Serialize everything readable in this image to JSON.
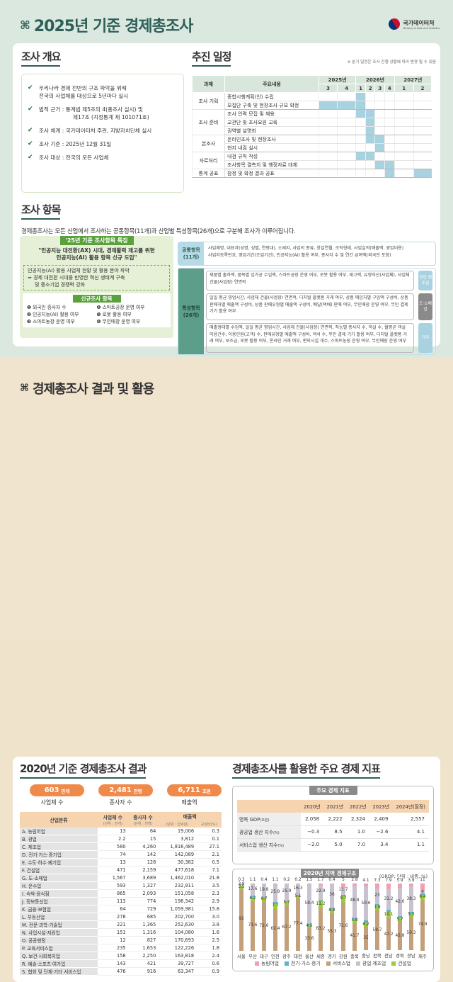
{
  "header": {
    "title_symbol": "⌘",
    "title": "2025년 기준 경제총조사",
    "logo_name": "국가데이터처",
    "logo_sub": "Ministry of Data and Statistics"
  },
  "overview": {
    "heading": "조사 개요",
    "items": [
      {
        "line1": "우리나라 경제 전반의 구조 파악을 위해",
        "line2": "전국의 사업체를 대상으로 5년마다 실시"
      },
      {
        "line1": "법적 근거 : 통계법 제5조의 4(총조사 실시) 및",
        "line2": "제17조 (지정통계 제 101071호)"
      },
      {
        "line1": "조사 체계 : 국가데이터처 주관, 지방자치단체 실시",
        "line2": ""
      },
      {
        "line1": "조사 기준 : 2025년 12월 31일",
        "line2": ""
      },
      {
        "line1": "조사 대상 : 전국의 모든 사업체",
        "line2": ""
      }
    ]
  },
  "schedule": {
    "heading": "추진 일정",
    "note": "※ 분기 일정은 조사 진행 상황에 따라 변경 될 수 있음",
    "col_task": "과제",
    "col_content": "주요내용",
    "years": [
      {
        "label": "2025년",
        "span": 2
      },
      {
        "label": "2026년",
        "span": 4
      },
      {
        "label": "2027년",
        "span": 2
      }
    ],
    "quarters": [
      "3",
      "4",
      "1",
      "2",
      "3",
      "4",
      "1",
      "2"
    ],
    "groups": [
      {
        "task": "조사 기획",
        "rows": [
          {
            "content": "종합시행계획(안) 수립",
            "bars": [
              0,
              0,
              1,
              0,
              0,
              0,
              0,
              0
            ]
          },
          {
            "content": "모집단 구축 및 현장조사 규모 확정",
            "bars": [
              1,
              1,
              1,
              0,
              0,
              0,
              0,
              0
            ]
          }
        ]
      },
      {
        "task": "조사 준비",
        "rows": [
          {
            "content": "조사 인력 모집 및 채용",
            "bars": [
              0,
              0,
              1,
              1,
              0,
              0,
              0,
              0
            ]
          },
          {
            "content": "교관단 및 조사요원 교육",
            "bars": [
              0,
              0,
              0,
              1,
              0,
              0,
              0,
              0
            ]
          },
          {
            "content": "권역별 설명회",
            "bars": [
              0,
              0,
              0,
              1,
              0,
              0,
              0,
              0
            ]
          }
        ]
      },
      {
        "task": "본조사",
        "rows": [
          {
            "content": "온라인조사 및 현장조사",
            "bars": [
              0,
              0,
              0,
              1,
              1,
              0,
              0,
              0
            ]
          },
          {
            "content": "현지 내검 실시",
            "bars": [
              0,
              0,
              0,
              0,
              1,
              0,
              0,
              0
            ]
          }
        ]
      },
      {
        "task": "자료처리",
        "rows": [
          {
            "content": "내검 규칙 작성",
            "bars": [
              0,
              0,
              1,
              1,
              0,
              0,
              0,
              0
            ]
          },
          {
            "content": "조사항목 결측치 및 행정자료 대체",
            "bars": [
              0,
              0,
              0,
              0,
              1,
              1,
              0,
              0
            ]
          }
        ]
      },
      {
        "task": "통계 공표",
        "rows": [
          {
            "content": "잠정 및 확정 결과 공표",
            "bars": [
              0,
              0,
              0,
              0,
              0,
              1,
              0,
              1
            ]
          }
        ]
      }
    ]
  },
  "items": {
    "heading": "조사 항목",
    "desc": "경제총조사는 모든 산업에서 조사하는 공통항목(11개)과 산업별 특성항목(26개)으로 구분해 조사가 이루어집니다.",
    "feature": {
      "tag": "'25년 기준 조사항목 특징",
      "quote1": "\"인공지능 대전환(AX) 시대, 경제활력 제고를 위한",
      "quote2": "인공지능(AI) 활용 항목 신규 도입\"",
      "dash1": "인공지능(AI) 활용 사업체 현황 및 활용 분야 파악",
      "dash_arrow": "➡",
      "dash2": "경제 대전환 시대를 반영한 혁신 생태계 구축",
      "dash3": "및 중소기업 경쟁력 강화",
      "new_tag": "신규조사 항목",
      "new_items": [
        "❶ 외국인 종사자 수",
        "❹ 스마트공장 운영 여부",
        "❷ 인공지능(AI) 활용 여부",
        "❺ 로봇 활용 여부",
        "❸ 스마트농장 운영 여부",
        "❻ 무인매장 운영 여부"
      ]
    },
    "common": {
      "label1": "공통항목",
      "label2": "(11개)",
      "line1": "사업체명, 대표자(성명, 성별, 연령대), 소재지, 사업의 종류, 창설연월, 조직형태, 사업실적(매출액, 영업비용)",
      "line2": "사업자등록번호, 영업기간(조업기간), 인공지능(AI) 활용 여부, 종사자 수 및 연간 급여액(외국인 포함)"
    },
    "special": {
      "label1": "특성항목",
      "label2": "(26개)",
      "rows": [
        {
          "text": "제품별 출하액, 품목별 임가공 수입액, 스마트공장 운영 여부, 로봇 활용 여부, 재고액, 유형자산(사업체), 사업체 건물(사업장) 연면적",
          "badge": "광업·제조업",
          "color": "#a8d2e0"
        },
        {
          "text": "일일 평균 영업시간, 사업체 건물(사업장) 연면적, 디지털 플랫폼 거래 여부, 상품 매입처별 구입액 구성비, 상품 판매처별 매출액 구성비, 상품 판매유형별 매출액 구성비, 배달(택배) 판매 여부, 무인매장 운영 여부, 무인 결제 기기 활용 여부",
          "badge": "도·소매업",
          "color": "#8a8a8a"
        },
        {
          "text": "매출형태별 수입액, 일일 평균 영업시간, 사업체 건물(사업장) 연면적, 직능별 종사자 수, 객실 수, 월평균 객실 이용건수, 이용인원(고객) 수, 판매유형별 매출액 구성비, 객석 수, 무인 결제 기기 활용 여부, 디지털 플랫폼 거래 여부, 보조금, 로봇 활용 여부, 온라인 거래 여부, 편의시설 개수, 스마트농장 운영 여부, 무인매장 운영 여부",
          "badge": "기타",
          "color": "#a8d2e0"
        }
      ]
    }
  },
  "section2": {
    "symbol": "⌘",
    "title": "경제총조사 결과 및 활용"
  },
  "results": {
    "heading": "2020년 기준 경제총조사 결과",
    "stats": [
      {
        "value": "603",
        "unit": "만개",
        "caption": "사업체 수"
      },
      {
        "value": "2,481",
        "unit": "만명",
        "caption": "종사자 수"
      },
      {
        "value": "6,711",
        "unit": "조원",
        "caption": "매출액"
      }
    ],
    "table": {
      "h_industry": "산업분류",
      "h_est": "사업체 수",
      "h_est_unit": "(단위 : 천개)",
      "h_emp": "종사자 수",
      "h_emp_unit": "(단위 : 천명)",
      "h_sales": "매출액",
      "h_sales_unit": "(단위 : 십억원)",
      "h_share": "구성비(%)",
      "rows": [
        [
          "A. 농림어업",
          "13",
          "64",
          "19,006",
          "0.3"
        ],
        [
          "B. 광업",
          "2.2",
          "15",
          "3,812",
          "0.1"
        ],
        [
          "C. 제조업",
          "580",
          "4,260",
          "1,816,489",
          "27.1"
        ],
        [
          "D. 전기·가스·증기업",
          "74",
          "142",
          "142,089",
          "2.1"
        ],
        [
          "E. 수도·하수·폐기업",
          "13",
          "128",
          "30,382",
          "0.5"
        ],
        [
          "F. 건설업",
          "471",
          "2,159",
          "477,618",
          "7.1"
        ],
        [
          "G. 도·소매업",
          "1,567",
          "3,689",
          "1,462,010",
          "21.8"
        ],
        [
          "H. 운수업",
          "593",
          "1,327",
          "232,911",
          "3.5"
        ],
        [
          "I. 숙박·음식점",
          "865",
          "2,093",
          "151,058",
          "2.3"
        ],
        [
          "J. 정보통신업",
          "113",
          "774",
          "196,342",
          "2.9"
        ],
        [
          "K. 금융·보험업",
          "64",
          "729",
          "1,059,981",
          "15.8"
        ],
        [
          "L. 부동산업",
          "278",
          "685",
          "202,700",
          "3.0"
        ],
        [
          "M. 전문·과학·기술업",
          "221",
          "1,365",
          "252,630",
          "3.8"
        ],
        [
          "N. 사업시설·지원업",
          "151",
          "1,316",
          "104,080",
          "1.6"
        ],
        [
          "O. 공공행정",
          "12",
          "827",
          "170,693",
          "2.5"
        ],
        [
          "P. 교육서비스업",
          "235",
          "1,653",
          "122,226",
          "1.8"
        ],
        [
          "Q. 보건·사회복지업",
          "158",
          "2,250",
          "163,818",
          "2.4"
        ],
        [
          "R. 예술·스포츠·여가업",
          "143",
          "421",
          "39,727",
          "0.6"
        ],
        [
          "S. 협회 및 단체·기타 서비스업",
          "476",
          "916",
          "63,347",
          "0.9"
        ]
      ]
    }
  },
  "indicators": {
    "heading": "경제총조사를 활용한 주요 경제 지표",
    "box_tag": "주요 경제 지표",
    "columns": [
      "",
      "2020년",
      "2021년",
      "2022년",
      "2023년",
      "2024년(잠정)"
    ],
    "rows": [
      {
        "label": "명목 GDP",
        "unit": "(조원)",
        "values": [
          "2,058",
          "2,222",
          "2,324",
          "2,409",
          "2,557"
        ]
      },
      {
        "label": "광공업 생산 지수",
        "unit": "(%)",
        "values": [
          "−0.3",
          "8.5",
          "1.0",
          "−2.6",
          "4.1"
        ]
      },
      {
        "label": "서비스업 생산 지수",
        "unit": "(%)",
        "values": [
          "−2.0",
          "5.0",
          "7.0",
          "3.4",
          "1.1"
        ]
      }
    ]
  },
  "chart_data": {
    "type": "bar",
    "stacked": true,
    "title": "2020년 지역 경제구조",
    "subtitle": "(GRDP, 단위 : 비중, %)",
    "categories": [
      "서울",
      "부산",
      "대구",
      "인천",
      "광주",
      "대전",
      "울산",
      "세종",
      "경기",
      "강원",
      "충북",
      "충남",
      "전북",
      "전남",
      "경북",
      "경남",
      "제주"
    ],
    "series": [
      {
        "name": "서비스업",
        "color": "#c4a07a",
        "values": [
          92.0,
          73.6,
          72.6,
          62.4,
          67.2,
          77.4,
          33.6,
          63.2,
          55.3,
          71.6,
          41.7,
          35.0,
          59.7,
          47.2,
          42.8,
          50.3,
          74.9
        ]
      },
      {
        "name": "건설업",
        "color": "#9ccc3c",
        "values": [
          3.5,
          6.2,
          6.7,
          7.7,
          5.7,
          5.1,
          4.5,
          11.2,
          6.8,
          9.7,
          5.8,
          6.2,
          7.9,
          10.1,
          5.7,
          5.3,
          8.4
        ]
      },
      {
        "name": "전기·가스·증기",
        "color": "#5ab4d0",
        "values": [
          0.3,
          1.5,
          0.5,
          3.0,
          1.0,
          1.0,
          2.0,
          1.0,
          1.5,
          2.0,
          1.5,
          3.0,
          1.5,
          2.5,
          2.0,
          1.5,
          1.5
        ]
      },
      {
        "name": "광업·제조업",
        "color": "#c8c2d0",
        "values": [
          3.9,
          17.6,
          19.8,
          25.8,
          25.9,
          16.3,
          58.4,
          22.9,
          36.0,
          11.7,
          48.8,
          50.6,
          23.0,
          31.2,
          42.6,
          38.3,
          4.0
        ]
      },
      {
        "name": "농림어업",
        "color": "#f0a0b0",
        "values": [
          0.3,
          1.1,
          0.4,
          1.1,
          0.2,
          0.2,
          1.5,
          1.7,
          0.4,
          5.0,
          2.8,
          4.1,
          7.3,
          7.9,
          5.9,
          3.9,
          11.0
        ]
      }
    ],
    "legend": [
      "농림어업",
      "전기·가스·증기",
      "서비스업",
      "광업·제조업",
      "건설업"
    ],
    "ylim": [
      0,
      100
    ]
  }
}
